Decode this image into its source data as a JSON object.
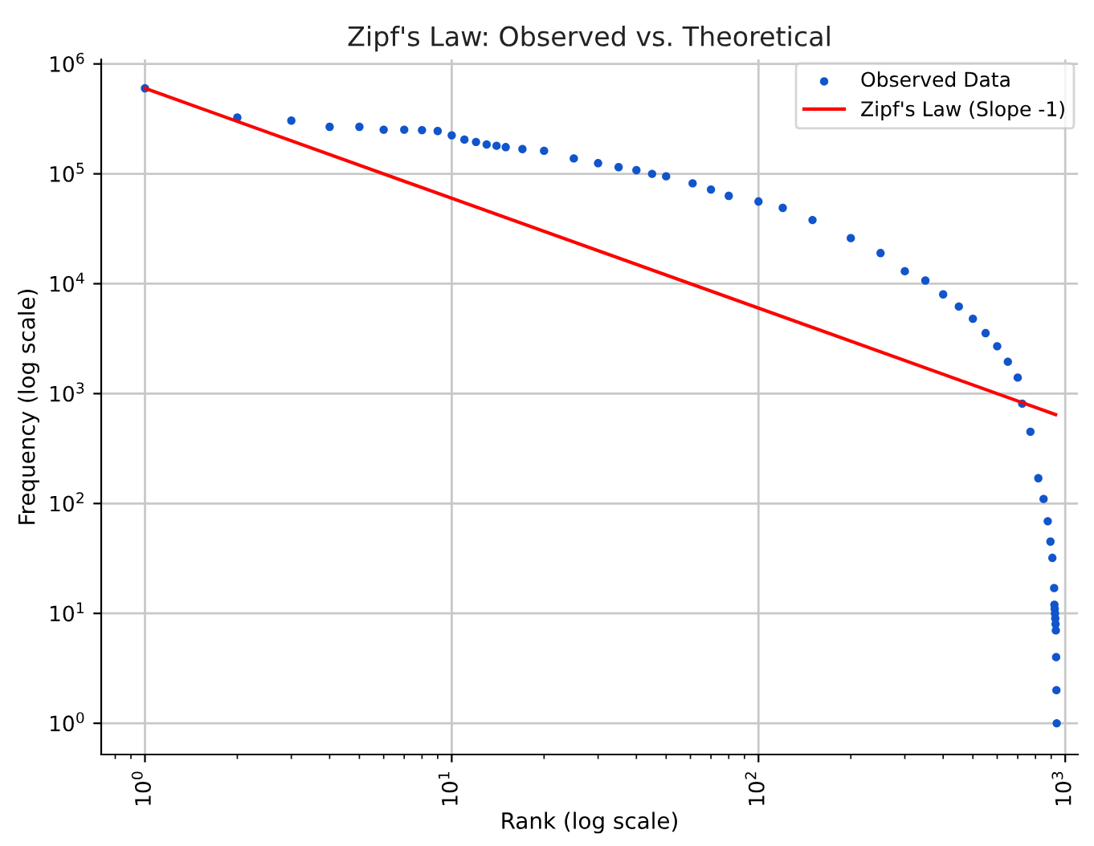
{
  "chart_data": {
    "type": "scatter",
    "title": "Zipf's Law: Observed vs. Theoretical",
    "xlabel": "Rank (log scale)",
    "ylabel": "Frequency (log scale)",
    "log": "xy",
    "grid": true,
    "legend": "top right",
    "xlim": [
      0.72,
      1100
    ],
    "ylim": [
      0.52,
      1100000
    ],
    "xticks": [
      {
        "value": 1,
        "label": "10$^{0}$"
      },
      {
        "value": 10,
        "label": "10$^{1}$"
      },
      {
        "value": 100,
        "label": "10$^{2}$"
      },
      {
        "value": 1000,
        "label": "10$^{3}$"
      }
    ],
    "yticks": [
      {
        "value": 1,
        "label": "10$^{0}$"
      },
      {
        "value": 10,
        "label": "10$^{1}$"
      },
      {
        "value": 100,
        "label": "10$^{2}$"
      },
      {
        "value": 1000,
        "label": "10$^{3}$"
      },
      {
        "value": 10000,
        "label": "10$^{4}$"
      },
      {
        "value": 100000,
        "label": "10$^{5}$"
      },
      {
        "value": 1000000,
        "label": "10$^{6}$"
      }
    ],
    "series": [
      {
        "name": "Observed Data",
        "marker": "circle",
        "color": "#1155cc",
        "x": [
          1,
          2,
          3,
          4,
          5,
          6,
          7,
          8,
          9,
          10,
          11,
          12,
          13,
          14,
          15,
          17,
          20,
          25,
          30,
          35,
          40,
          45,
          50,
          61,
          70,
          80,
          100,
          120,
          150,
          200,
          250,
          300,
          350,
          400,
          450,
          500,
          550,
          600,
          650,
          700,
          724,
          770,
          817,
          850,
          877,
          895,
          908,
          920,
          922,
          924,
          926,
          928,
          930,
          932,
          934,
          936,
          938
        ],
        "values": [
          600000,
          325000,
          305000,
          268000,
          268000,
          252000,
          252000,
          250000,
          245000,
          224000,
          205000,
          195000,
          185000,
          180000,
          175000,
          168000,
          162000,
          138000,
          125000,
          115000,
          108000,
          100000,
          95000,
          82000,
          72000,
          63000,
          56000,
          49000,
          38000,
          26000,
          19000,
          13000,
          10700,
          8000,
          6200,
          4800,
          3550,
          2700,
          1950,
          1400,
          810,
          450,
          170,
          110,
          69,
          45,
          32,
          17,
          12,
          11,
          10,
          9,
          8,
          7,
          4,
          2,
          1
        ]
      },
      {
        "name": "Zipf's Law (Slope -1)",
        "type": "line",
        "color": "#ff0000",
        "line_style": "solid",
        "x": [
          1,
          930
        ],
        "values": [
          600000,
          645
        ]
      }
    ]
  }
}
